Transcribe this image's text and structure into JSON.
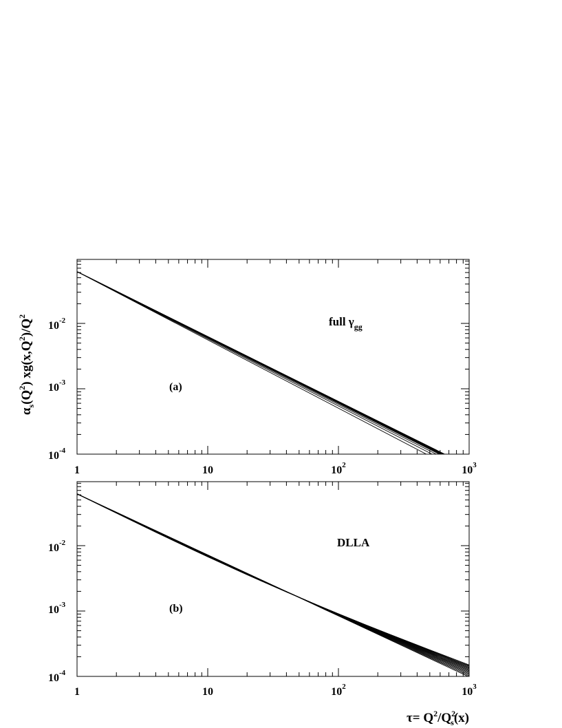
{
  "chart_data": [
    {
      "type": "line",
      "panel_label": "(a)",
      "annotation": {
        "main": "full γ",
        "sub": "gg"
      },
      "xscale": "log",
      "yscale": "log",
      "xlim": [
        1,
        1000
      ],
      "ylim": [
        0.0001,
        0.08
      ],
      "x_ticks": [
        {
          "base": "1",
          "exp": ""
        },
        {
          "base": "10",
          "exp": ""
        },
        {
          "base": "10",
          "exp": "2"
        },
        {
          "base": "10",
          "exp": "3"
        }
      ],
      "y_ticks": [
        {
          "base": "10",
          "exp": "-2",
          "value": 0.01
        },
        {
          "base": "10",
          "exp": "-3",
          "value": 0.001
        },
        {
          "base": "10",
          "exp": "-4",
          "value": 0.0001
        }
      ],
      "y_start": 0.062,
      "series_end_x": [
        470,
        520,
        560,
        590,
        605,
        615,
        625,
        630,
        635,
        640,
        645,
        650
      ]
    },
    {
      "type": "line",
      "panel_label": "(b)",
      "annotation": {
        "main": "DLLA",
        "sub": ""
      },
      "xscale": "log",
      "yscale": "log",
      "xlim": [
        1,
        1000
      ],
      "ylim": [
        0.0001,
        0.08
      ],
      "x_ticks": [
        {
          "base": "1",
          "exp": ""
        },
        {
          "base": "10",
          "exp": ""
        },
        {
          "base": "10",
          "exp": "2"
        },
        {
          "base": "10",
          "exp": "3"
        }
      ],
      "y_ticks": [
        {
          "base": "10",
          "exp": "-2",
          "value": 0.01
        },
        {
          "base": "10",
          "exp": "-3",
          "value": 0.001
        },
        {
          "base": "10",
          "exp": "-4",
          "value": 0.0001
        }
      ],
      "y_start": 0.062,
      "series_end_y_at_1000": [
        9.8e-05,
        0.000102,
        0.000106,
        0.00011,
        0.000114,
        0.000118,
        0.000122,
        0.000126,
        0.00013,
        0.000134,
        0.000138,
        0.000142,
        0.000146,
        0.00015
      ]
    }
  ],
  "y_axis_title": {
    "a": "α",
    "s": "s",
    "b": "(Q",
    "sq1": "2",
    "c": ") xg(x,Q",
    "sq2": "2",
    "d": ")/Q",
    "sq3": "2"
  },
  "x_axis_title": {
    "a": "τ= Q",
    "sq1": "2",
    "b": "/Q",
    "sq2": "2",
    "sub": "s",
    "c": "(x)"
  }
}
